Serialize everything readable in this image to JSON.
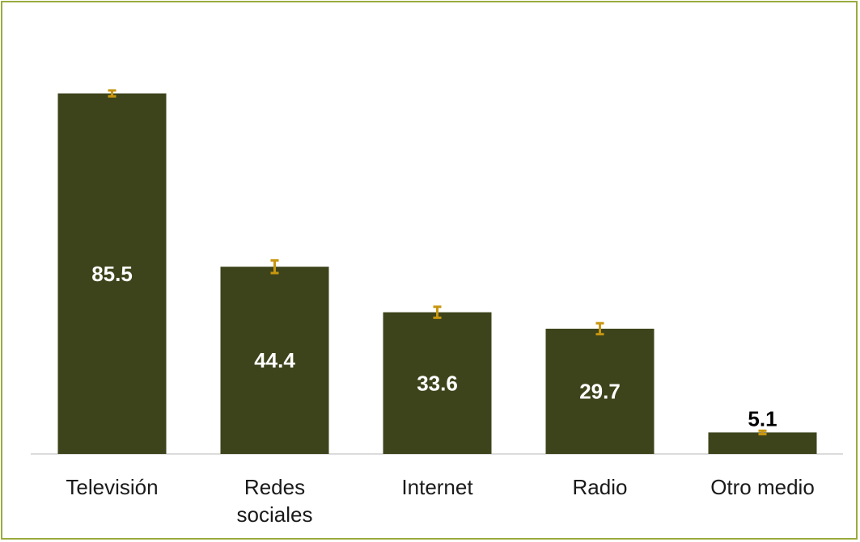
{
  "chart_data": {
    "type": "bar",
    "categories": [
      "Televisión",
      "Redes sociales",
      "Internet",
      "Radio",
      "Otro medio"
    ],
    "category_lines": [
      [
        "Televisión"
      ],
      [
        "Redes",
        "sociales"
      ],
      [
        "Internet"
      ],
      [
        "Radio"
      ],
      [
        "Otro medio"
      ]
    ],
    "values": [
      85.5,
      44.4,
      33.6,
      29.7,
      5.1
    ],
    "value_labels": [
      "85.5",
      "44.4",
      "33.6",
      "29.7",
      "5.1"
    ],
    "error_bars": [
      0.7,
      1.5,
      1.3,
      1.3,
      0.4
    ],
    "ylim": [
      0,
      86
    ],
    "title": "",
    "xlabel": "",
    "ylabel": "",
    "grid": false,
    "legend": "none",
    "colors": {
      "bar": "#3d441b",
      "error_bar": "#c8960f",
      "axis_line": "#d0d0d0",
      "frame": "#9aab3e"
    }
  }
}
